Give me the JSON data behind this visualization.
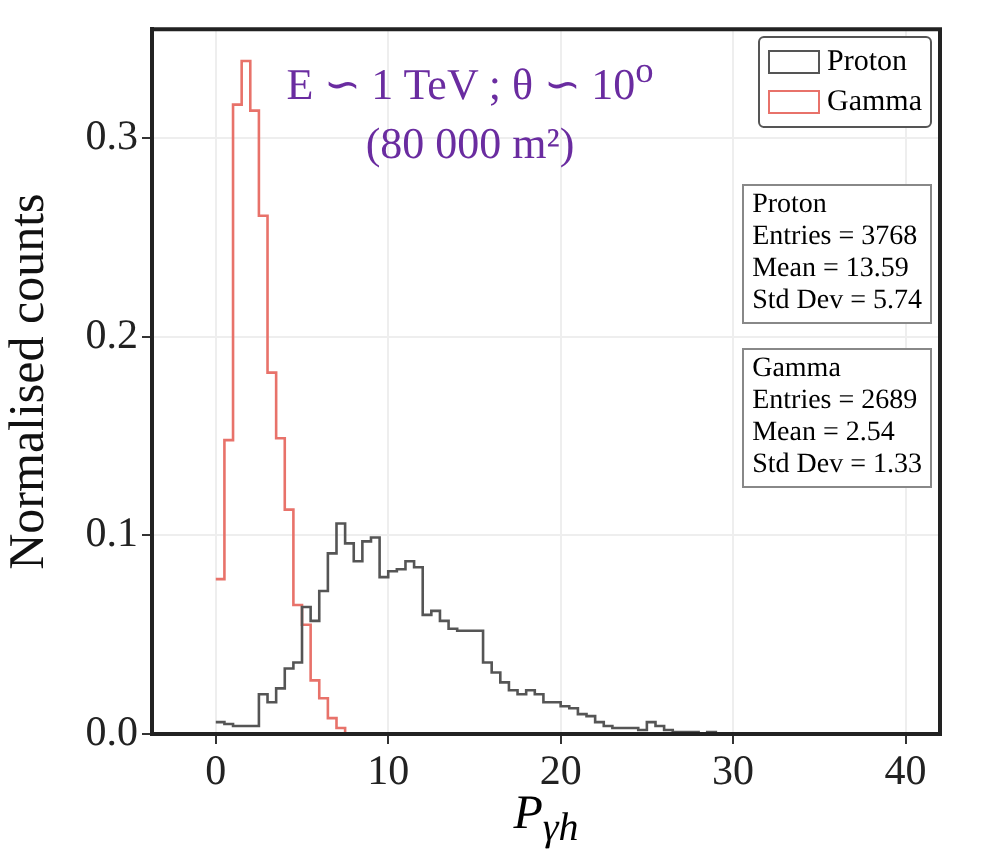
{
  "chart_data": {
    "type": "histogram",
    "xlabel": "P$_{γh}$",
    "ylabel": "Normalised counts",
    "bins": [
      0,
      0.5,
      1,
      1.5,
      2,
      2.5,
      3,
      3.5,
      4,
      4.5,
      5,
      5.5,
      6,
      6.5,
      7,
      7.5,
      8,
      8.5,
      9,
      9.5,
      10,
      10.5,
      11,
      11.5,
      12,
      12.5,
      13,
      13.5,
      14,
      14.5,
      15,
      15.5,
      16,
      16.5,
      17,
      17.5,
      18,
      18.5,
      19,
      19.5,
      20,
      20.5,
      21,
      21.5,
      22,
      22.5,
      23,
      23.5,
      24,
      24.5,
      25,
      25.5,
      26,
      26.5,
      27,
      27.5,
      28,
      28.5,
      29,
      29.5,
      30
    ],
    "series": [
      {
        "name": "Proton",
        "color": "#555555",
        "values": [
          0.006,
          0.005,
          0.004,
          0.004,
          0.004,
          0.02,
          0.016,
          0.023,
          0.033,
          0.036,
          0.064,
          0.057,
          0.072,
          0.091,
          0.106,
          0.096,
          0.087,
          0.097,
          0.099,
          0.079,
          0.082,
          0.083,
          0.087,
          0.084,
          0.06,
          0.062,
          0.057,
          0.053,
          0.052,
          0.052,
          0.052,
          0.036,
          0.031,
          0.026,
          0.022,
          0.02,
          0.022,
          0.02,
          0.016,
          0.016,
          0.014,
          0.013,
          0.01,
          0.009,
          0.006,
          0.004,
          0.003,
          0.003,
          0.003,
          0.002,
          0.006,
          0.004,
          0.002,
          0.001,
          0.001,
          0.001,
          0,
          0.001,
          0,
          0
        ]
      },
      {
        "name": "Gamma",
        "color": "#e8726a",
        "values": [
          0.078,
          0.148,
          0.317,
          0.339,
          0.314,
          0.261,
          0.182,
          0.149,
          0.113,
          0.065,
          0.055,
          0.027,
          0.018,
          0.008,
          0.003,
          0,
          0,
          0,
          0,
          0,
          0,
          0,
          0,
          0,
          0,
          0,
          0,
          0,
          0,
          0,
          0,
          0,
          0,
          0,
          0,
          0,
          0,
          0,
          0,
          0,
          0,
          0,
          0,
          0,
          0,
          0,
          0,
          0,
          0,
          0,
          0,
          0,
          0,
          0,
          0,
          0,
          0,
          0,
          0,
          0
        ]
      }
    ],
    "xlim": [
      -3.7,
      42
    ],
    "xticks": [
      0,
      10,
      20,
      30,
      40
    ],
    "ylim": [
      0,
      0.355
    ],
    "yticks": [
      {
        "value": 0,
        "label": "0.0"
      },
      {
        "value": 0.1,
        "label": "0.1"
      },
      {
        "value": 0.2,
        "label": "0.2"
      },
      {
        "value": 0.3,
        "label": "0.3"
      }
    ],
    "grid": true,
    "legend": "top right",
    "annotations": [
      "E ∽ 1 TeV ; θ ∽ 10$^{o}$",
      "(80 000 m²)",
      "Proton\nEntries = 3768\nMean = 13.59\nStd Dev = 5.74",
      "Gamma\nEntries = 2689\nMean = 2.54\nStd Dev = 1.33"
    ]
  }
}
